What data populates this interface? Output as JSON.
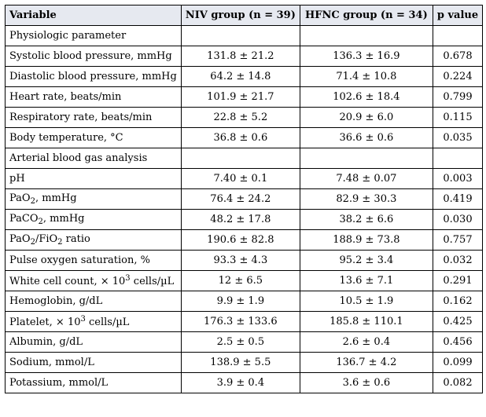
{
  "table": {
    "headers": [
      "Variable",
      "NIV group (n = 39)",
      "HFNC group (n = 34)",
      "p value"
    ],
    "rows": [
      {
        "variable": "Physiologic parameter",
        "niv": "",
        "hfnc": "",
        "p": ""
      },
      {
        "variable": "Systolic blood pressure, mmHg",
        "niv": "131.8 ± 21.2",
        "hfnc": "136.3 ± 16.9",
        "p": "0.678"
      },
      {
        "variable": "Diastolic blood pressure, mmHg",
        "niv": "64.2 ± 14.8",
        "hfnc": "71.4 ± 10.8",
        "p": "0.224"
      },
      {
        "variable": "Heart rate, beats/min",
        "niv": "101.9 ± 21.7",
        "hfnc": "102.6 ± 18.4",
        "p": "0.799"
      },
      {
        "variable": "Respiratory rate, beats/min",
        "niv": "22.8 ± 5.2",
        "hfnc": "20.9 ± 6.0",
        "p": "0.115"
      },
      {
        "variable": "Body temperature, °C",
        "niv": "36.8 ± 0.6",
        "hfnc": "36.6 ± 0.6",
        "p": "0.035"
      },
      {
        "variable": "Arterial blood gas analysis",
        "niv": "",
        "hfnc": "",
        "p": ""
      },
      {
        "variable": "pH",
        "niv": "7.40 ± 0.1",
        "hfnc": "7.48 ± 0.07",
        "p": "0.003"
      },
      {
        "variable_parts": [
          "PaO",
          "2",
          ", mmHg"
        ],
        "niv": "76.4 ± 24.2",
        "hfnc": "82.9 ± 30.3",
        "p": "0.419"
      },
      {
        "variable_parts": [
          "PaCO",
          "2",
          ", mmHg"
        ],
        "niv": "48.2 ± 17.8",
        "hfnc": "38.2 ± 6.6",
        "p": "0.030"
      },
      {
        "variable_parts": [
          "PaO",
          "2",
          "/FiO",
          "2",
          " ratio"
        ],
        "niv": "190.6 ± 82.8",
        "hfnc": "188.9 ± 73.8",
        "p": "0.757"
      },
      {
        "variable": "Pulse oxygen saturation, %",
        "niv": "93.3 ± 4.3",
        "hfnc": "95.2 ± 3.4",
        "p": "0.032"
      },
      {
        "variable_parts": [
          "White cell count, × 10",
          "3",
          " cells/µL"
        ],
        "niv": "12 ± 6.5",
        "hfnc": "13.6 ± 7.1",
        "p": "0.291"
      },
      {
        "variable": "Hemoglobin, g/dL",
        "niv": "9.9 ± 1.9",
        "hfnc": "10.5 ± 1.9",
        "p": "0.162"
      },
      {
        "variable_parts": [
          "Platelet, × 10",
          "3",
          " cells/µL"
        ],
        "niv": "176.3 ± 133.6",
        "hfnc": "185.8 ± 110.1",
        "p": "0.425"
      },
      {
        "variable": "Albumin, g/dL",
        "niv": "2.5 ± 0.5",
        "hfnc": "2.6 ± 0.4",
        "p": "0.456"
      },
      {
        "variable": "Sodium, mmol/L",
        "niv": "138.9 ± 5.5",
        "hfnc": "136.7 ± 4.2",
        "p": "0.099"
      },
      {
        "variable": "Potassium, mmol/L",
        "niv": "3.9 ± 0.4",
        "hfnc": "3.6 ± 0.6",
        "p": "0.082"
      }
    ]
  }
}
